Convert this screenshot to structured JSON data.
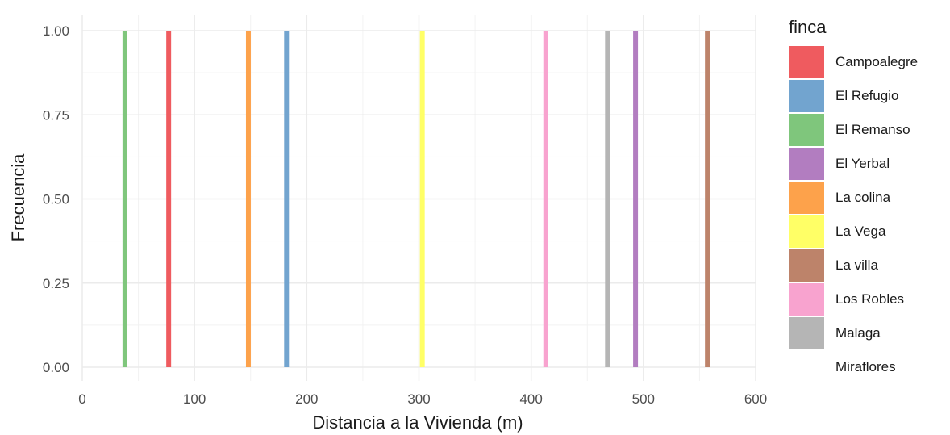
{
  "chart_data": {
    "type": "bar",
    "xlabel": "Distancia a la Vivienda (m)",
    "ylabel": "Frecuencia",
    "xlim": [
      0,
      600
    ],
    "ylim": [
      0,
      1
    ],
    "xticks": [
      0,
      100,
      200,
      300,
      400,
      500,
      600
    ],
    "yticks": [
      0.0,
      0.25,
      0.5,
      0.75,
      1.0
    ],
    "ytick_labels": [
      "0.00",
      "0.25",
      "0.50",
      "0.75",
      "1.00"
    ],
    "grid": true,
    "legend_title": "finca",
    "legend_position": "right",
    "series": [
      {
        "name": "Campoalegre",
        "color": "#EF5B5F",
        "x": 77,
        "value": 1
      },
      {
        "name": "El Refugio",
        "color": "#72A4CF",
        "x": 182,
        "value": 1
      },
      {
        "name": "El Remanso",
        "color": "#7FC67C",
        "x": 38,
        "value": 1
      },
      {
        "name": "El Yerbal",
        "color": "#B27DC0",
        "x": 493,
        "value": 1
      },
      {
        "name": "La colina",
        "color": "#FDA24B",
        "x": 148,
        "value": 1
      },
      {
        "name": "La Vega",
        "color": "#FFFF66",
        "x": 303,
        "value": 1
      },
      {
        "name": "La villa",
        "color": "#BD836A",
        "x": 557,
        "value": 1
      },
      {
        "name": "Los Robles",
        "color": "#F8A3CF",
        "x": 413,
        "value": 1
      },
      {
        "name": "Malaga",
        "color": "#B5B5B5",
        "x": 468,
        "value": 1
      },
      {
        "name": "Miraflores",
        "color": "#FFFFFF",
        "x": null,
        "value": 0
      }
    ]
  }
}
